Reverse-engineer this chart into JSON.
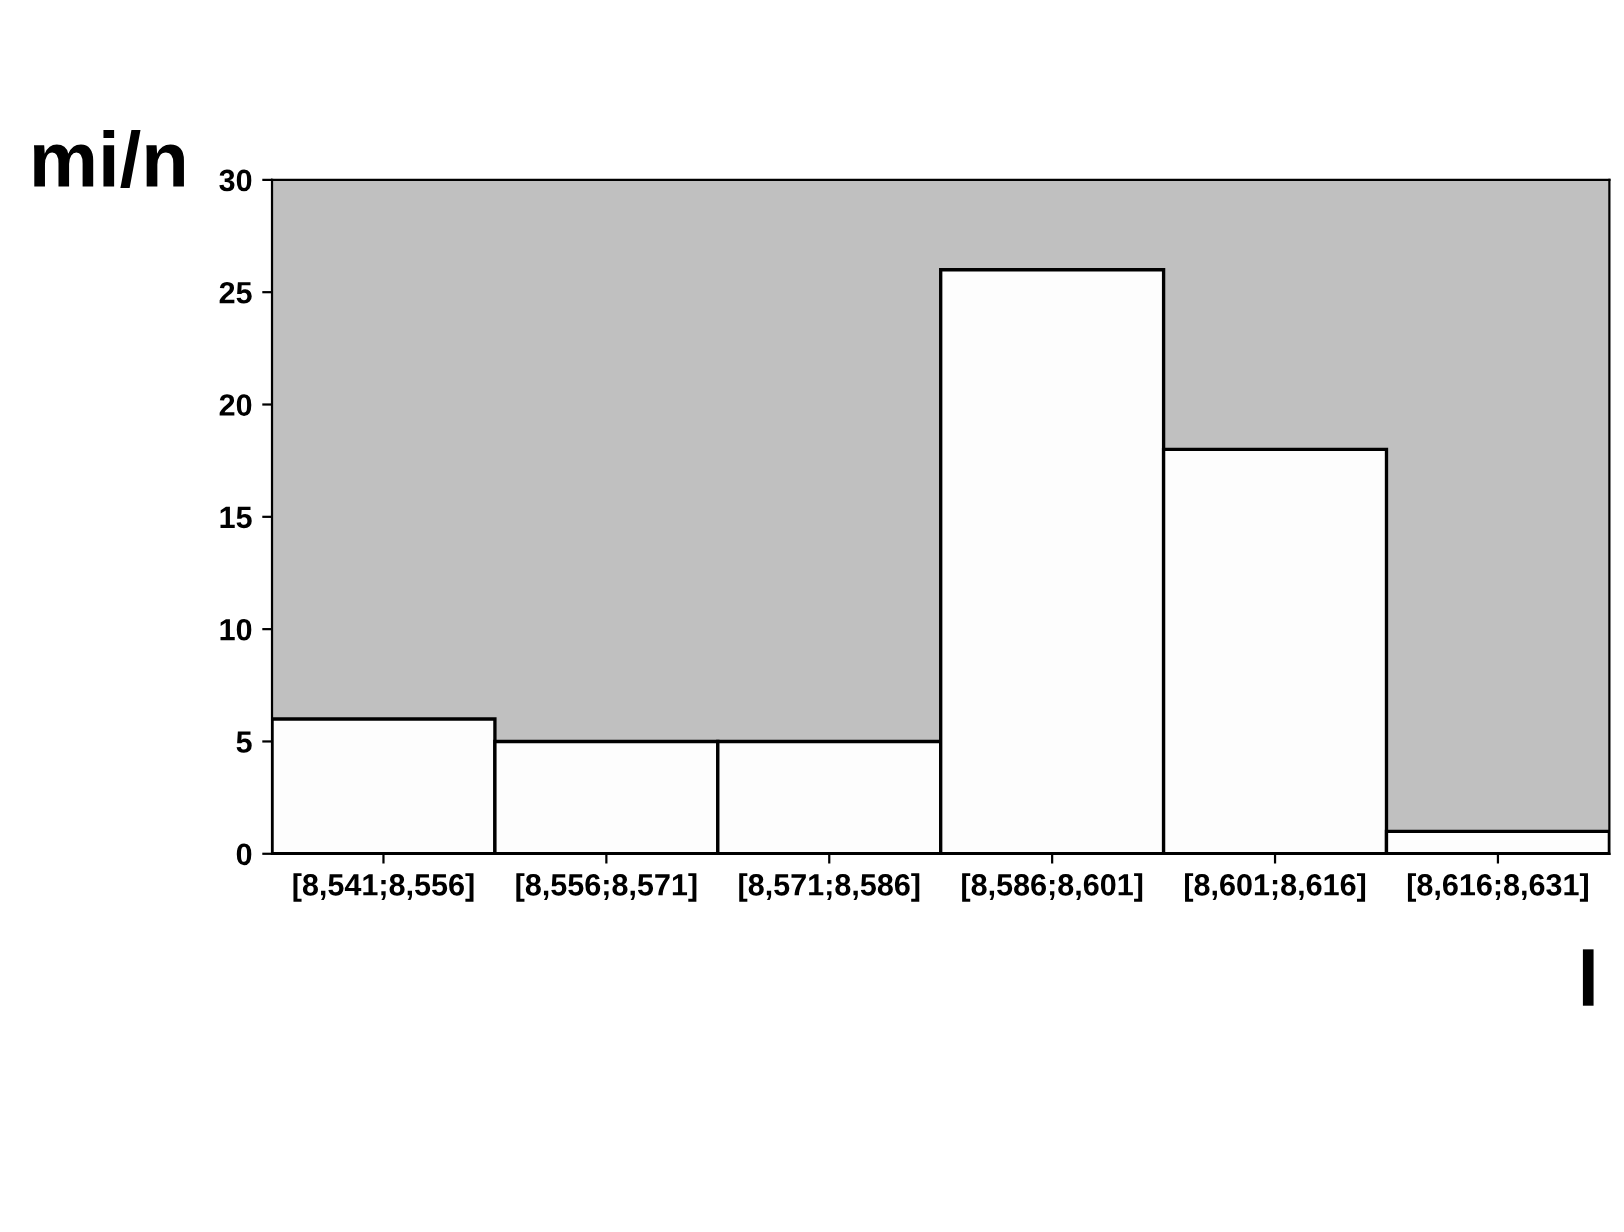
{
  "chart_data": {
    "type": "bar",
    "xlabel": "l",
    "ylabel": "mi/n",
    "categories": [
      "[8,541;8,556]",
      "[8,556;8,571]",
      "[8,571;8,586]",
      "[8,586;8,601]",
      "[8,601;8,616]",
      "[8,616;8,631]"
    ],
    "values": [
      6,
      5,
      5,
      26,
      18,
      1
    ],
    "color": "#fdfdfd",
    "ylim": [
      0,
      30
    ],
    "yticks": [
      0,
      5,
      10,
      15,
      20,
      25,
      30
    ],
    "grid": false,
    "legend": false
  }
}
